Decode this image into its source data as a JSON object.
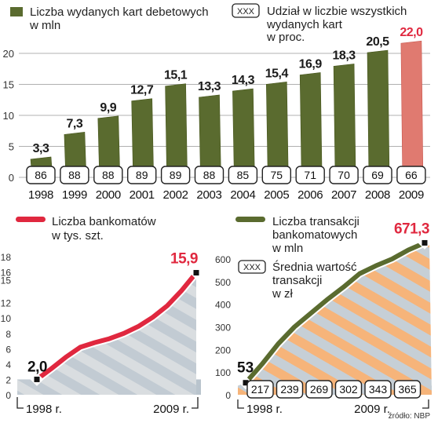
{
  "colors": {
    "olive": "#5a6b2f",
    "olive_light": "#a6ad86",
    "red": "#e0283f",
    "red_bar": "#e07a70",
    "axis_gray": "#b0b0b0",
    "shade": "#c9d2d9",
    "orange": "#f7b77e"
  },
  "source": "źródło: NBP",
  "chart_data": [
    {
      "type": "bar",
      "legend": {
        "series": "Liczba wydanych kart debetowych w mln",
        "series_lines": [
          "Liczba wydanych kart debetowych",
          "w mln"
        ],
        "box_marker": "XXX",
        "box_series": "Udział w liczbie wszystkich wydanych kart w proc.",
        "box_lines": [
          "Udział w liczbie wszystkich",
          "wydanych kart",
          "w proc."
        ]
      },
      "categories": [
        "1998",
        "1999",
        "2000",
        "2001",
        "2002",
        "2003",
        "2004",
        "2005",
        "2006",
        "2007",
        "2008",
        "2009"
      ],
      "values": [
        3.3,
        7.3,
        9.9,
        12.7,
        15.1,
        13.3,
        14.3,
        15.4,
        16.9,
        18.3,
        20.5,
        22.0
      ],
      "value_labels": [
        "3,3",
        "7,3",
        "9,9",
        "12,7",
        "15,1",
        "13,3",
        "14,3",
        "15,4",
        "16,9",
        "18,3",
        "20,5",
        "22,0"
      ],
      "share_values": [
        "86",
        "88",
        "88",
        "89",
        "89",
        "88",
        "85",
        "75",
        "71",
        "70",
        "69",
        "66"
      ],
      "highlight_last": true,
      "ylim": [
        0,
        22
      ],
      "yticks": [
        0,
        5,
        10,
        15,
        20
      ]
    },
    {
      "type": "area",
      "legend": {
        "series": "Liczba bankomatów w tys. szt.",
        "series_lines": [
          "Liczba bankomatów",
          "w tys. szt."
        ]
      },
      "x": [
        "1998",
        "1999",
        "2000",
        "2001",
        "2002",
        "2003",
        "2004",
        "2005",
        "2006",
        "2007",
        "2008",
        "2009"
      ],
      "values": [
        2.0,
        3.4,
        4.9,
        6.2,
        6.8,
        7.3,
        8.0,
        8.9,
        10.1,
        11.6,
        13.6,
        15.9
      ],
      "start_label": "2,0",
      "end_label": "15,9",
      "xlabels": [
        "1998 r.",
        "2009 r."
      ],
      "ylim": [
        0,
        18
      ],
      "yticks": [
        0,
        2,
        4,
        6,
        8,
        10,
        12,
        15,
        16,
        18
      ]
    },
    {
      "type": "area",
      "legend": {
        "series": "Liczba transakcji bankomatowych w mln",
        "series_lines": [
          "Liczba transakcji",
          "bankomatowych",
          "w mln"
        ],
        "box_marker": "XXX",
        "box_series": "Średnia wartość transakcji w zł",
        "box_lines": [
          "Średnia wartość",
          "transakcji",
          "w zł"
        ]
      },
      "x": [
        "1998",
        "1999",
        "2000",
        "2001",
        "2002",
        "2003",
        "2004",
        "2005",
        "2006",
        "2007",
        "2008",
        "2009"
      ],
      "values": [
        53,
        135,
        225,
        300,
        360,
        420,
        475,
        535,
        570,
        600,
        640,
        671.3
      ],
      "start_label": "53",
      "end_label": "671,3",
      "avg_values": [
        "217",
        "239",
        "269",
        "302",
        "343",
        "365"
      ],
      "xlabels": [
        "1998 r.",
        "2009 r."
      ],
      "ylim": [
        0,
        650
      ],
      "yticks": [
        0,
        100,
        200,
        300,
        400,
        500,
        600
      ]
    }
  ]
}
